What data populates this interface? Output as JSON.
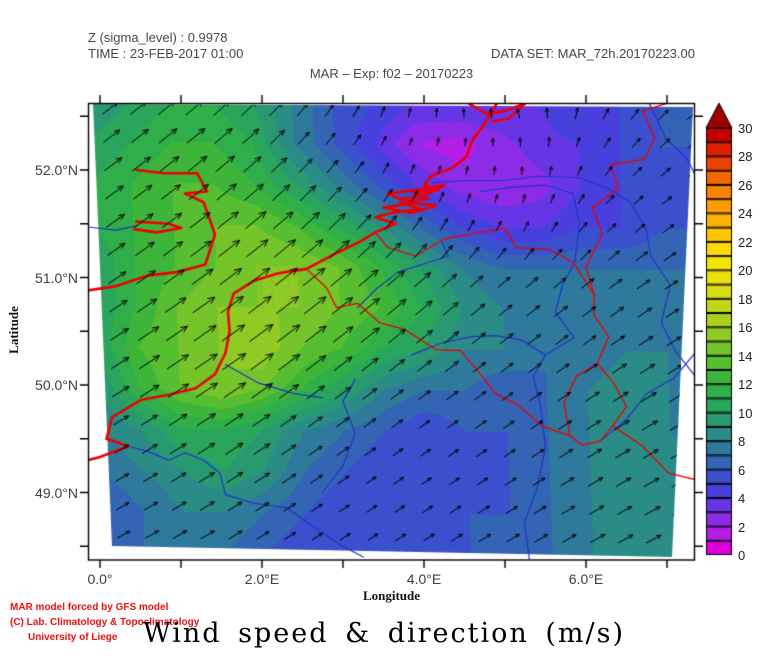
{
  "header": {
    "sigma_line": "Z (sigma_level) : 0.9978",
    "time_line": "TIME : 23-FEB-2017 01:00",
    "dataset_line": "DATA SET: MAR_72h.20170223.00",
    "exp_line": "MAR – Exp: f02 – 20170223"
  },
  "title": "Wind speed & direction (m/s)",
  "credits": {
    "line1": "MAR model forced by GFS model",
    "line2": "(C) Lab. Climatology & Topoclimatology",
    "line3": "University of Liege",
    "color": "#EE1111"
  },
  "axes": {
    "xlabel": "Longitude",
    "ylabel": "Latitude",
    "lon_ticks": [
      {
        "label": "0.0°",
        "value": 0
      },
      {
        "label": "2.0°E",
        "value": 2
      },
      {
        "label": "4.0°E",
        "value": 4
      },
      {
        "label": "6.0°E",
        "value": 6
      }
    ],
    "lon_minor": [
      1,
      3,
      5,
      7
    ],
    "lat_ticks": [
      {
        "label": "52.0°N",
        "value": 52
      },
      {
        "label": "51.0°N",
        "value": 51
      },
      {
        "label": "50.0°N",
        "value": 50
      },
      {
        "label": "49.0°N",
        "value": 49
      }
    ],
    "lat_minor_step": 0.5
  },
  "chart_data": {
    "type": "heatmap",
    "title": "Wind speed & direction (m/s)",
    "units": "m/s",
    "xlabel": "Longitude",
    "ylabel": "Latitude",
    "lon_range": [
      -0.15,
      7.35
    ],
    "lat_range": [
      48.38,
      52.62
    ],
    "grid_on": false,
    "colorbar": {
      "min": 0,
      "max": 30,
      "segment_step": 1,
      "label_step": 2,
      "segment_colors": [
        "#DC00DC",
        "#B41EE6",
        "#8C2CE6",
        "#6636E6",
        "#4840DC",
        "#3A50CC",
        "#3464B4",
        "#2F799C",
        "#2B8B86",
        "#299971",
        "#2AA55C",
        "#2FAE4A",
        "#3DB53A",
        "#57BD31",
        "#75C42A",
        "#90CA24",
        "#AAD01E",
        "#C2D618",
        "#D8DC12",
        "#EAE00C",
        "#F6E306",
        "#FCD903",
        "#FDC700",
        "#FDB200",
        "#FC9C00",
        "#F88300",
        "#F36600",
        "#EC4400",
        "#DD2100",
        "#C60000"
      ],
      "overflow_color": "#9E0000"
    },
    "speed_grid": {
      "lon_count": 16,
      "lat_count": 12,
      "comment": "wind speed m/s, rows top(52.62N) to bottom(48.38N), cols -0.15E to 7.35E",
      "values": [
        [
          9,
          10,
          11,
          11,
          10,
          8,
          6,
          5,
          4,
          4,
          4,
          4,
          5,
          5,
          6,
          6
        ],
        [
          10,
          11,
          12,
          12,
          11,
          8,
          6,
          4,
          2,
          1.5,
          2.5,
          3.5,
          4,
          5,
          6,
          6
        ],
        [
          11,
          12,
          13,
          13,
          12,
          10,
          8,
          6,
          4,
          2.5,
          2,
          2.5,
          4,
          5,
          5,
          6
        ],
        [
          11,
          12,
          13,
          14,
          14,
          13,
          11,
          9,
          7,
          5,
          4,
          4,
          5,
          5,
          6,
          6
        ],
        [
          10,
          12,
          13,
          14,
          15,
          15,
          14,
          12,
          10,
          8,
          7,
          7,
          7,
          7,
          7,
          7
        ],
        [
          10,
          12,
          14,
          15,
          15,
          15,
          14,
          13,
          11,
          9,
          8,
          8,
          8,
          8,
          7,
          7
        ],
        [
          10,
          13,
          14,
          15,
          16,
          14,
          13,
          11,
          10,
          8,
          8,
          7,
          7,
          8,
          8,
          7
        ],
        [
          9,
          12,
          14,
          15,
          14,
          12,
          10,
          8,
          7,
          7,
          6,
          7,
          8,
          9,
          8,
          7
        ],
        [
          8,
          9,
          11,
          11,
          10,
          8,
          7,
          6,
          5,
          6,
          6,
          7,
          8,
          9,
          8,
          7
        ],
        [
          7,
          8,
          9,
          10,
          9,
          7,
          6,
          5,
          5,
          5,
          6,
          7,
          8,
          8,
          9,
          8
        ],
        [
          6,
          7,
          8,
          8,
          7,
          6,
          5,
          5,
          5,
          6,
          6,
          7,
          8,
          8,
          9,
          8
        ],
        [
          6,
          7,
          7,
          7,
          6,
          5,
          5,
          5,
          6,
          6,
          7,
          7,
          8,
          8,
          8,
          8
        ]
      ]
    },
    "arrow_dir_grid": {
      "lon_count": 8,
      "lat_count": 6,
      "comment": "arrow pointing direction, degrees CCW from east",
      "values": [
        [
          38,
          40,
          45,
          60,
          90,
          110,
          60,
          35
        ],
        [
          36,
          38,
          42,
          50,
          70,
          80,
          45,
          32
        ],
        [
          34,
          36,
          38,
          40,
          42,
          40,
          36,
          30
        ],
        [
          32,
          34,
          36,
          38,
          38,
          36,
          33,
          30
        ],
        [
          30,
          32,
          34,
          35,
          34,
          32,
          30,
          28
        ],
        [
          28,
          30,
          32,
          33,
          32,
          30,
          28,
          26
        ]
      ]
    }
  },
  "geo": {
    "coast_color": "#EE0000",
    "border_color": "#EE0000",
    "river_color": "#2233CC",
    "coastlines": [
      [
        [
          4.9,
          52.62
        ],
        [
          4.72,
          52.4
        ],
        [
          4.6,
          52.28
        ],
        [
          4.52,
          52.12
        ],
        [
          4.35,
          52.02
        ],
        [
          4.1,
          51.95
        ],
        [
          4.0,
          51.86
        ],
        [
          4.18,
          51.82
        ],
        [
          3.88,
          51.78
        ],
        [
          4.05,
          51.73
        ],
        [
          3.7,
          51.7
        ],
        [
          3.95,
          51.64
        ],
        [
          3.6,
          51.6
        ],
        [
          3.4,
          51.56
        ],
        [
          3.65,
          51.5
        ],
        [
          3.4,
          51.42
        ],
        [
          3.2,
          51.33
        ],
        [
          2.9,
          51.22
        ],
        [
          2.55,
          51.08
        ],
        [
          2.2,
          51.04
        ],
        [
          1.9,
          50.97
        ],
        [
          1.65,
          50.85
        ],
        [
          1.58,
          50.68
        ],
        [
          1.6,
          50.5
        ],
        [
          1.55,
          50.3
        ],
        [
          1.42,
          50.1
        ],
        [
          1.18,
          49.97
        ],
        [
          0.85,
          49.91
        ],
        [
          0.5,
          49.86
        ],
        [
          0.15,
          49.7
        ],
        [
          0.08,
          49.5
        ],
        [
          0.35,
          49.43
        ],
        [
          0.0,
          49.33
        ],
        [
          -0.15,
          49.3
        ]
      ],
      [
        [
          3.55,
          51.78
        ],
        [
          3.95,
          51.82
        ],
        [
          4.25,
          51.86
        ],
        [
          4.0,
          51.76
        ],
        [
          3.7,
          51.73
        ],
        [
          3.55,
          51.78
        ]
      ],
      [
        [
          3.5,
          51.65
        ],
        [
          3.85,
          51.69
        ],
        [
          4.15,
          51.67
        ],
        [
          3.85,
          51.6
        ],
        [
          3.5,
          51.65
        ]
      ],
      [
        [
          4.55,
          52.62
        ],
        [
          4.78,
          52.52
        ],
        [
          5.0,
          52.55
        ],
        [
          5.25,
          52.62
        ],
        [
          5.05,
          52.48
        ],
        [
          4.85,
          52.45
        ]
      ],
      [
        [
          0.45,
          52.0
        ],
        [
          0.8,
          51.97
        ],
        [
          1.2,
          51.97
        ],
        [
          1.32,
          51.8
        ],
        [
          1.05,
          51.78
        ],
        [
          1.28,
          51.7
        ],
        [
          1.42,
          51.4
        ],
        [
          1.3,
          51.12
        ],
        [
          0.95,
          51.05
        ],
        [
          0.6,
          51.02
        ],
        [
          0.2,
          50.92
        ],
        [
          -0.15,
          50.88
        ]
      ],
      [
        [
          0.45,
          51.52
        ],
        [
          0.85,
          51.5
        ],
        [
          1.0,
          51.46
        ],
        [
          0.7,
          51.42
        ],
        [
          0.42,
          51.45
        ]
      ]
    ],
    "borders": [
      [
        [
          2.55,
          51.08
        ],
        [
          2.8,
          50.9
        ],
        [
          2.92,
          50.72
        ],
        [
          3.18,
          50.76
        ],
        [
          3.45,
          50.58
        ],
        [
          3.75,
          50.52
        ],
        [
          4.15,
          50.33
        ],
        [
          4.45,
          50.32
        ],
        [
          4.72,
          50.08
        ],
        [
          4.88,
          49.92
        ],
        [
          5.15,
          49.82
        ],
        [
          5.45,
          49.62
        ],
        [
          5.8,
          49.53
        ]
      ],
      [
        [
          5.8,
          49.53
        ],
        [
          5.73,
          49.84
        ],
        [
          5.88,
          50.08
        ],
        [
          6.14,
          50.2
        ],
        [
          6.34,
          50.02
        ],
        [
          6.5,
          49.8
        ],
        [
          6.33,
          49.62
        ],
        [
          6.18,
          49.48
        ],
        [
          5.95,
          49.44
        ],
        [
          5.8,
          49.53
        ]
      ],
      [
        [
          3.4,
          51.42
        ],
        [
          3.55,
          51.28
        ],
        [
          3.9,
          51.2
        ],
        [
          4.25,
          51.36
        ],
        [
          4.7,
          51.42
        ],
        [
          5.0,
          51.46
        ],
        [
          5.14,
          51.28
        ],
        [
          5.55,
          51.26
        ],
        [
          5.84,
          51.14
        ],
        [
          6.0,
          50.96
        ],
        [
          6.1,
          50.84
        ]
      ],
      [
        [
          6.14,
          50.2
        ],
        [
          6.28,
          50.45
        ],
        [
          6.1,
          50.65
        ],
        [
          6.1,
          50.84
        ],
        [
          6.0,
          51.1
        ],
        [
          6.2,
          51.4
        ],
        [
          6.08,
          51.65
        ],
        [
          6.4,
          51.83
        ],
        [
          6.3,
          52.05
        ],
        [
          6.72,
          52.1
        ],
        [
          6.85,
          52.3
        ],
        [
          6.7,
          52.55
        ],
        [
          7.0,
          52.62
        ]
      ],
      [
        [
          6.33,
          49.62
        ],
        [
          6.7,
          49.43
        ],
        [
          7.02,
          49.18
        ],
        [
          7.35,
          49.12
        ]
      ]
    ],
    "rivers": [
      [
        [
          -0.15,
          51.47
        ],
        [
          0.2,
          51.44
        ],
        [
          0.45,
          51.48
        ]
      ],
      [
        [
          0.35,
          49.43
        ],
        [
          0.6,
          49.38
        ],
        [
          0.85,
          49.3
        ],
        [
          1.05,
          49.37
        ],
        [
          1.28,
          49.3
        ],
        [
          1.48,
          49.18
        ],
        [
          1.55,
          48.98
        ],
        [
          1.9,
          48.9
        ],
        [
          2.3,
          48.86
        ],
        [
          2.6,
          48.7
        ],
        [
          2.95,
          48.52
        ],
        [
          3.25,
          48.4
        ]
      ],
      [
        [
          2.75,
          49.0
        ],
        [
          3.0,
          49.25
        ],
        [
          3.15,
          49.55
        ],
        [
          3.0,
          49.85
        ],
        [
          3.15,
          50.05
        ]
      ],
      [
        [
          5.3,
          48.38
        ],
        [
          5.24,
          48.72
        ],
        [
          5.4,
          49.05
        ],
        [
          5.5,
          49.42
        ],
        [
          5.44,
          49.8
        ],
        [
          5.35,
          50.08
        ],
        [
          5.5,
          50.28
        ],
        [
          5.85,
          50.44
        ],
        [
          5.62,
          50.68
        ],
        [
          5.72,
          50.95
        ],
        [
          5.86,
          51.14
        ],
        [
          5.92,
          51.5
        ],
        [
          5.84,
          51.78
        ],
        [
          5.5,
          51.86
        ],
        [
          5.1,
          51.84
        ],
        [
          4.7,
          51.8
        ]
      ],
      [
        [
          7.35,
          50.08
        ],
        [
          7.1,
          50.32
        ],
        [
          6.93,
          50.58
        ],
        [
          7.04,
          50.93
        ],
        [
          6.8,
          51.2
        ],
        [
          6.74,
          51.45
        ],
        [
          6.55,
          51.7
        ],
        [
          6.25,
          51.84
        ],
        [
          5.9,
          51.93
        ],
        [
          5.4,
          51.94
        ],
        [
          4.95,
          51.9
        ],
        [
          4.5,
          51.9
        ],
        [
          4.1,
          51.88
        ]
      ],
      [
        [
          6.18,
          49.48
        ],
        [
          6.5,
          49.68
        ],
        [
          6.75,
          49.92
        ],
        [
          7.08,
          50.06
        ],
        [
          7.35,
          50.3
        ]
      ],
      [
        [
          3.18,
          50.72
        ],
        [
          3.42,
          50.9
        ],
        [
          3.68,
          51.05
        ],
        [
          4.05,
          51.14
        ],
        [
          4.3,
          51.2
        ],
        [
          4.22,
          51.33
        ]
      ],
      [
        [
          3.85,
          50.28
        ],
        [
          4.25,
          50.4
        ],
        [
          4.6,
          50.45
        ],
        [
          4.88,
          50.46
        ],
        [
          5.2,
          50.42
        ],
        [
          5.5,
          50.28
        ]
      ],
      [
        [
          6.78,
          52.62
        ],
        [
          6.98,
          52.3
        ],
        [
          7.25,
          52.1
        ],
        [
          7.35,
          51.95
        ]
      ],
      [
        [
          1.55,
          50.19
        ],
        [
          1.95,
          50.02
        ],
        [
          2.4,
          49.92
        ],
        [
          2.75,
          49.88
        ]
      ]
    ]
  }
}
